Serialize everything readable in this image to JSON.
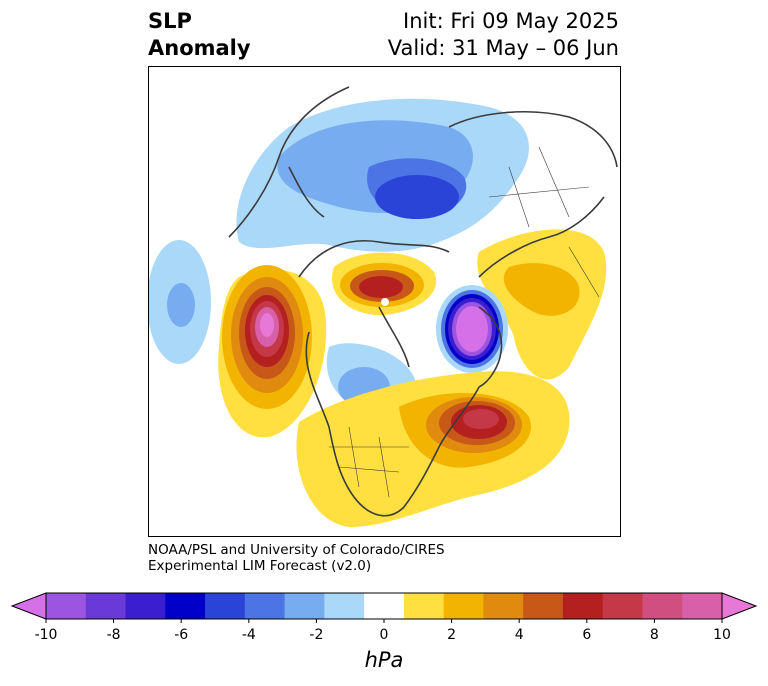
{
  "header": {
    "title_line1": "SLP",
    "title_line2": "Anomaly",
    "init": "Init: Fri 09 May 2025",
    "valid": "Valid: 31 May – 06 Jun"
  },
  "credit": {
    "line1": "NOAA/PSL and University of Colorado/CIRES",
    "line2": "Experimental LIM Forecast (v2.0)"
  },
  "colorbar": {
    "units": "hPa",
    "ticks": [
      "-10",
      "-8",
      "-6",
      "-4",
      "-2",
      "0",
      "2",
      "4",
      "6",
      "8",
      "10"
    ],
    "colors": [
      "#d670e8",
      "#9b55e0",
      "#6a3ad8",
      "#3a1ed0",
      "#0000c8",
      "#2a44d8",
      "#4c74e4",
      "#78acf0",
      "#aad8f8",
      "#ffffff",
      "#ffe040",
      "#f2b400",
      "#e08a10",
      "#c85818",
      "#b42020",
      "#c43848",
      "#d04e80",
      "#d860a8",
      "#e878d8"
    ],
    "extend": "both"
  }
}
